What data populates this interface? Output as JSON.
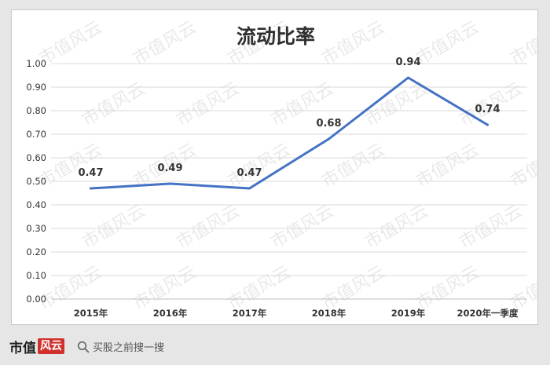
{
  "chart_data": {
    "type": "line",
    "title": "流动比率",
    "categories": [
      "2015年",
      "2016年",
      "2017年",
      "2018年",
      "2019年",
      "2020年一季度"
    ],
    "series": [
      {
        "values": [
          0.47,
          0.49,
          0.47,
          0.68,
          0.94,
          0.74
        ]
      }
    ],
    "data_labels": [
      "0.47",
      "0.49",
      "0.47",
      "0.68",
      "0.94",
      "0.74"
    ],
    "y_ticks": [
      "1.00",
      "0.90",
      "0.80",
      "0.70",
      "0.60",
      "0.50",
      "0.40",
      "0.30",
      "0.20",
      "0.10",
      "0.00"
    ],
    "ylim": [
      0,
      1.0
    ],
    "grid": true,
    "line_color": "#4472c4",
    "watermark": "市值风云"
  },
  "footer": {
    "brand_a": "市值",
    "brand_b": "风云",
    "search_text": "买股之前搜一搜",
    "search_icon": "search-icon"
  }
}
